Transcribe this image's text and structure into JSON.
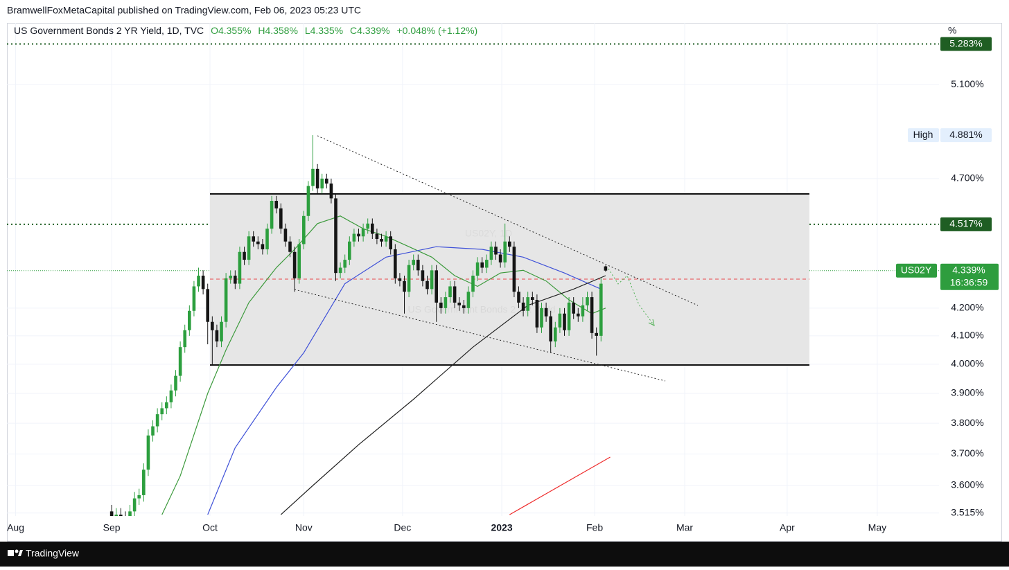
{
  "header": "BramwellFoxMetaCapital published on TradingView.com, Feb 06, 2023 05:23 UTC",
  "footer": "TradingView",
  "chart_data": {
    "type": "candlestick",
    "legend": {
      "title": "US Government Bonds 2 YR Yield, 1D, TVC",
      "open": "O4.355%",
      "high": "H4.358%",
      "low": "L4.335%",
      "close": "C4.339%",
      "change": "+0.048% (+1.12%)"
    },
    "watermark": "US02Y, 1D",
    "watermark_subtitle": "US Government Bonds 2 YR Yield",
    "axis_unit": "%",
    "up_color": "#2c9f3e",
    "down_color": "#151515",
    "log_scale": true,
    "grid": true,
    "xlim": [
      -22.9,
      180.9
    ],
    "ylim": [
      3.506,
      5.381
    ],
    "xticks": [
      {
        "value": -21,
        "label": "Aug"
      },
      {
        "value": 0,
        "label": "Sep"
      },
      {
        "value": 21.5,
        "label": "Oct"
      },
      {
        "value": 42,
        "label": "Nov"
      },
      {
        "value": 63.6,
        "label": "Dec"
      },
      {
        "value": 85.3,
        "label": "2023"
      },
      {
        "value": 105.6,
        "label": "Feb"
      },
      {
        "value": 125.3,
        "label": "Mar"
      },
      {
        "value": 147.7,
        "label": "Apr"
      },
      {
        "value": 167.4,
        "label": "May"
      }
    ],
    "yticks": [
      {
        "value": 3.515,
        "label": "3.515%"
      },
      {
        "value": 3.6,
        "label": "3.600%"
      },
      {
        "value": 3.7,
        "label": "3.700%"
      },
      {
        "value": 3.8,
        "label": "3.800%"
      },
      {
        "value": 3.9,
        "label": "3.900%"
      },
      {
        "value": 4.0,
        "label": "4.000%"
      },
      {
        "value": 4.1,
        "label": "4.100%"
      },
      {
        "value": 4.2,
        "label": "4.200%"
      },
      {
        "value": 4.7,
        "label": "4.700%"
      },
      {
        "value": 5.1,
        "label": "5.100%"
      }
    ],
    "open": [
      3.52,
      3.5,
      3.51,
      3.5,
      3.49,
      3.52,
      3.56,
      3.57,
      3.65,
      3.76,
      3.79,
      3.83,
      3.85,
      3.87,
      3.91,
      3.96,
      4.06,
      4.12,
      4.19,
      4.28,
      4.32,
      4.27,
      4.15,
      4.12,
      4.08,
      4.15,
      4.31,
      4.32,
      4.29,
      4.41,
      4.38,
      4.47,
      4.45,
      4.44,
      4.42,
      4.5,
      4.61,
      4.58,
      4.5,
      4.45,
      4.41,
      4.31,
      4.44,
      4.55,
      4.67,
      4.74,
      4.66,
      4.7,
      4.68,
      4.62,
      4.33,
      4.35,
      4.38,
      4.45,
      4.48,
      4.47,
      4.5,
      4.52,
      4.48,
      4.46,
      4.45,
      4.47,
      4.42,
      4.31,
      4.3,
      4.26,
      4.36,
      4.38,
      4.34,
      4.3,
      4.27,
      4.34,
      4.22,
      4.2,
      4.24,
      4.28,
      4.22,
      4.21,
      4.2,
      4.26,
      4.32,
      4.37,
      4.35,
      4.38,
      4.43,
      4.4,
      4.37,
      4.45,
      4.43,
      4.26,
      4.22,
      4.19,
      4.24,
      4.23,
      4.13,
      4.2,
      4.17,
      4.08,
      4.13,
      4.18,
      4.12,
      4.22,
      4.18,
      4.17,
      4.21,
      4.24,
      4.11,
      4.1,
      4.355
    ],
    "high": [
      3.54,
      3.53,
      3.53,
      3.52,
      3.54,
      3.58,
      3.59,
      3.67,
      3.78,
      3.81,
      3.85,
      3.87,
      3.89,
      3.93,
      3.98,
      4.08,
      4.14,
      4.21,
      4.3,
      4.35,
      4.34,
      4.29,
      4.17,
      4.14,
      4.17,
      4.33,
      4.34,
      4.34,
      4.43,
      4.43,
      4.49,
      4.49,
      4.47,
      4.46,
      4.52,
      4.63,
      4.63,
      4.6,
      4.52,
      4.47,
      4.43,
      4.46,
      4.57,
      4.69,
      4.881,
      4.76,
      4.72,
      4.72,
      4.7,
      4.64,
      4.37,
      4.4,
      4.47,
      4.5,
      4.5,
      4.52,
      4.54,
      4.54,
      4.5,
      4.48,
      4.49,
      4.49,
      4.44,
      4.33,
      4.32,
      4.38,
      4.4,
      4.4,
      4.36,
      4.32,
      4.36,
      4.36,
      4.24,
      4.26,
      4.3,
      4.3,
      4.24,
      4.23,
      4.28,
      4.34,
      4.39,
      4.39,
      4.4,
      4.45,
      4.45,
      4.42,
      4.52,
      4.47,
      4.45,
      4.28,
      4.24,
      4.26,
      4.26,
      4.25,
      4.22,
      4.22,
      4.19,
      4.15,
      4.2,
      4.2,
      4.24,
      4.24,
      4.2,
      4.24,
      4.26,
      4.26,
      4.13,
      4.31,
      4.358
    ],
    "low": [
      3.48,
      3.48,
      3.48,
      3.47,
      3.47,
      3.5,
      3.54,
      3.55,
      3.63,
      3.74,
      3.77,
      3.81,
      3.83,
      3.85,
      3.89,
      3.94,
      4.04,
      4.1,
      4.17,
      4.26,
      4.25,
      4.07,
      4.0,
      4.06,
      4.06,
      4.13,
      4.29,
      4.27,
      4.27,
      4.36,
      4.36,
      4.43,
      4.42,
      4.4,
      4.4,
      4.48,
      4.56,
      4.48,
      4.43,
      4.39,
      4.26,
      4.29,
      4.42,
      4.53,
      4.65,
      4.64,
      4.64,
      4.66,
      4.6,
      4.3,
      4.31,
      4.33,
      4.36,
      4.43,
      4.45,
      4.45,
      4.48,
      4.46,
      4.44,
      4.43,
      4.43,
      4.4,
      4.29,
      4.28,
      4.18,
      4.24,
      4.34,
      4.32,
      4.28,
      4.25,
      4.25,
      4.15,
      4.18,
      4.18,
      4.22,
      4.2,
      4.19,
      4.18,
      4.18,
      4.24,
      4.3,
      4.33,
      4.33,
      4.36,
      4.38,
      4.35,
      4.35,
      4.41,
      4.24,
      4.2,
      4.17,
      4.17,
      4.21,
      4.11,
      4.11,
      4.15,
      4.04,
      4.06,
      4.11,
      4.1,
      4.1,
      4.16,
      4.15,
      4.15,
      4.19,
      4.09,
      4.03,
      4.08,
      4.335
    ],
    "close": [
      3.5,
      3.51,
      3.5,
      3.49,
      3.52,
      3.56,
      3.57,
      3.65,
      3.76,
      3.79,
      3.83,
      3.85,
      3.87,
      3.91,
      3.96,
      4.06,
      4.12,
      4.19,
      4.28,
      4.32,
      4.27,
      4.15,
      4.12,
      4.08,
      4.15,
      4.31,
      4.32,
      4.29,
      4.41,
      4.38,
      4.47,
      4.45,
      4.44,
      4.42,
      4.5,
      4.61,
      4.58,
      4.5,
      4.45,
      4.41,
      4.31,
      4.44,
      4.55,
      4.67,
      4.74,
      4.66,
      4.7,
      4.68,
      4.62,
      4.33,
      4.35,
      4.38,
      4.45,
      4.48,
      4.47,
      4.5,
      4.52,
      4.48,
      4.46,
      4.45,
      4.47,
      4.42,
      4.31,
      4.3,
      4.26,
      4.36,
      4.38,
      4.34,
      4.3,
      4.27,
      4.34,
      4.22,
      4.2,
      4.24,
      4.28,
      4.22,
      4.21,
      4.2,
      4.26,
      4.32,
      4.37,
      4.35,
      4.38,
      4.43,
      4.4,
      4.37,
      4.45,
      4.43,
      4.26,
      4.22,
      4.19,
      4.24,
      4.23,
      4.13,
      4.2,
      4.17,
      4.08,
      4.13,
      4.18,
      4.12,
      4.22,
      4.18,
      4.17,
      4.21,
      4.24,
      4.11,
      4.1,
      4.29,
      4.339
    ],
    "overlays": [
      {
        "color": "#3c9a3c",
        "x": [
          11,
          15,
          21,
          25,
          30,
          36,
          40,
          45,
          50,
          55,
          60,
          65,
          70,
          75,
          80,
          85,
          90,
          95,
          100,
          105,
          108
        ],
        "values": [
          3.51,
          3.63,
          3.9,
          4.05,
          4.22,
          4.35,
          4.42,
          4.52,
          4.55,
          4.5,
          4.47,
          4.43,
          4.39,
          4.32,
          4.28,
          4.33,
          4.34,
          4.3,
          4.23,
          4.18,
          4.2
        ]
      },
      {
        "color": "#3f51d8",
        "x": [
          21,
          27,
          36,
          42,
          51,
          60,
          71,
          81,
          90,
          99,
          107
        ],
        "values": [
          3.51,
          3.72,
          3.92,
          4.04,
          4.29,
          4.39,
          4.43,
          4.42,
          4.39,
          4.33,
          4.27
        ]
      },
      {
        "color": "#222222",
        "x": [
          37,
          44,
          54,
          66,
          79,
          91,
          101,
          108
        ],
        "values": [
          3.51,
          3.6,
          3.73,
          3.88,
          4.06,
          4.21,
          4.27,
          4.32
        ]
      },
      {
        "color": "#ee2b2b",
        "x": [
          87,
          109
        ],
        "values": [
          3.51,
          3.69
        ]
      }
    ],
    "price_labels": [
      {
        "value": 5.283,
        "label": "5.283%",
        "color": "#1f5e23",
        "text_color": "#ffffff",
        "line": "dotted"
      },
      {
        "name": "High",
        "value": 4.881,
        "label": "4.881%",
        "color": "#e3effd",
        "text_color": "#131722"
      },
      {
        "value": 4.517,
        "label": "4.517%",
        "color": "#1f5e23",
        "text_color": "#ffffff",
        "line": "dotted"
      }
    ],
    "last_price": {
      "name": "US02Y",
      "value": 4.339,
      "label": "4.339%",
      "countdown": "16:36:59",
      "color": "#2e9d3e"
    }
  }
}
